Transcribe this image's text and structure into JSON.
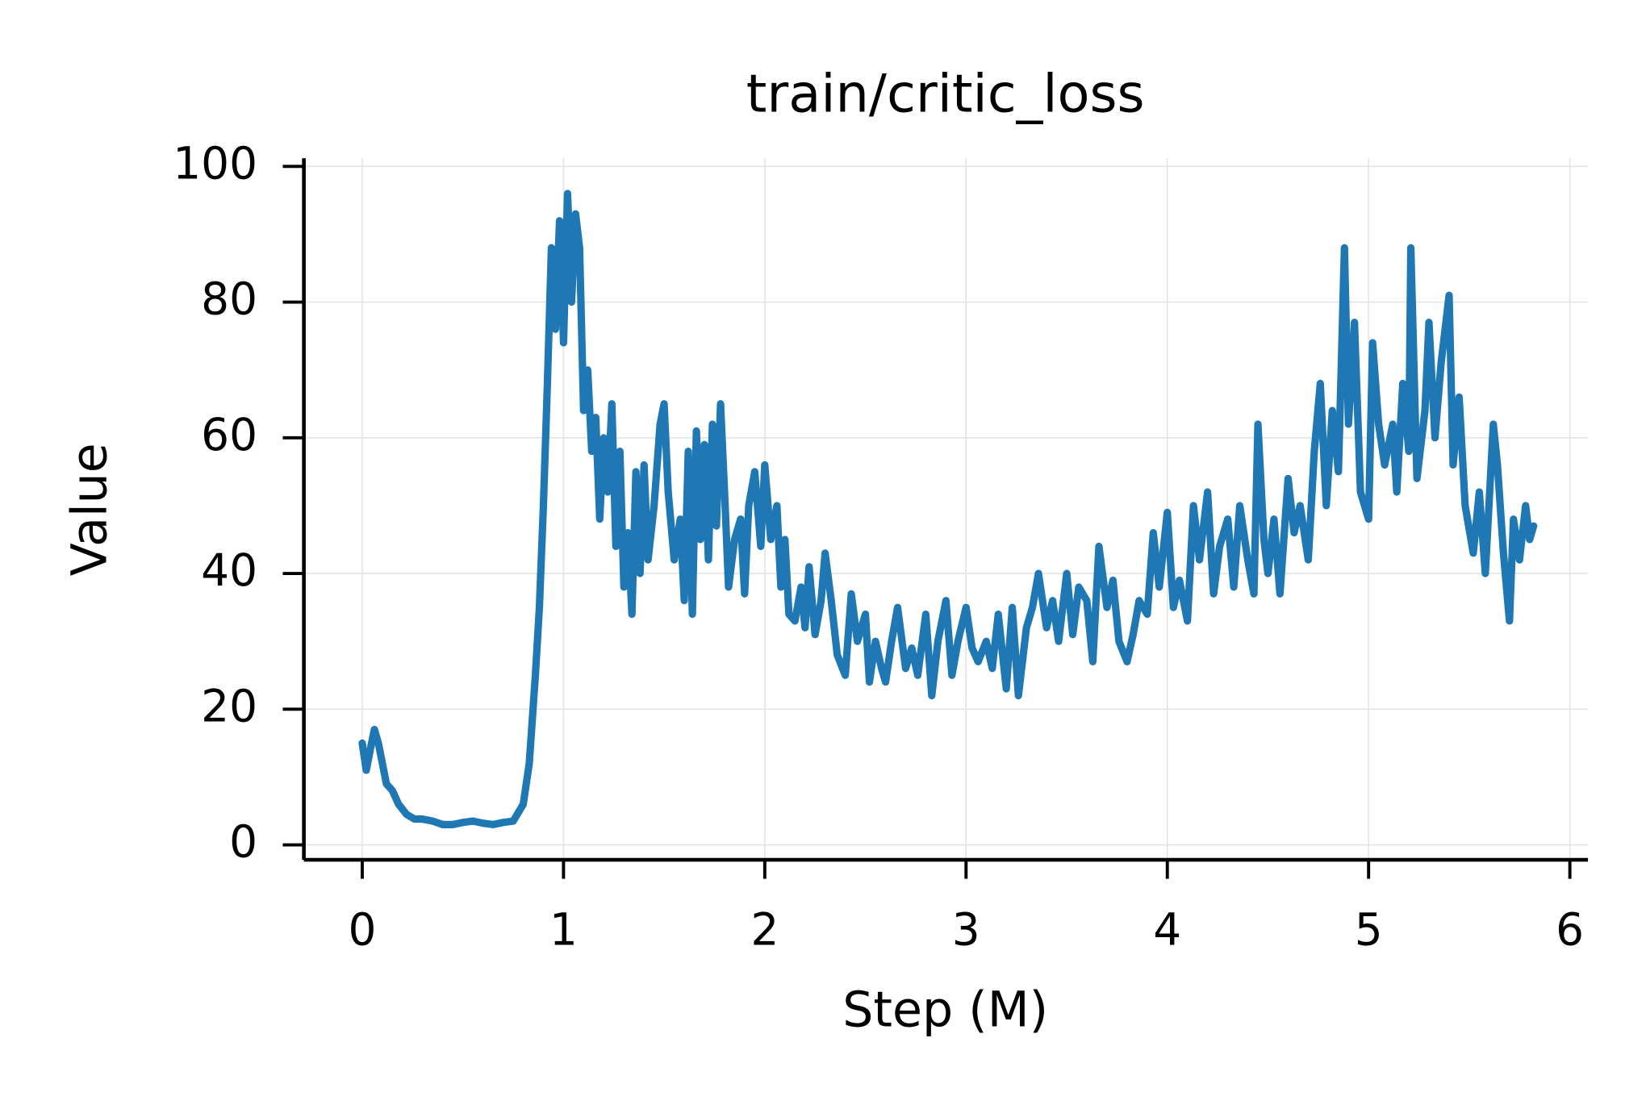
{
  "chart_data": {
    "type": "line",
    "title": "train/critic_loss",
    "x_label": "Step (M)",
    "y_label": "Value",
    "color": "#1f77b4",
    "grid": true,
    "xlim": [
      -0.29,
      6.09
    ],
    "ylim": [
      -2.2,
      101.2
    ],
    "xticks": [
      0,
      1,
      2,
      3,
      4,
      5,
      6
    ],
    "yticks": [
      0,
      20,
      40,
      60,
      80,
      100
    ],
    "x": [
      0,
      0.02,
      0.04,
      0.06,
      0.08,
      0.1,
      0.12,
      0.15,
      0.18,
      0.22,
      0.26,
      0.3,
      0.35,
      0.4,
      0.45,
      0.5,
      0.55,
      0.6,
      0.65,
      0.7,
      0.75,
      0.8,
      0.83,
      0.86,
      0.88,
      0.9,
      0.92,
      0.94,
      0.96,
      0.98,
      1.0,
      1.02,
      1.04,
      1.06,
      1.08,
      1.1,
      1.12,
      1.14,
      1.16,
      1.18,
      1.2,
      1.22,
      1.24,
      1.26,
      1.28,
      1.3,
      1.32,
      1.34,
      1.36,
      1.38,
      1.4,
      1.42,
      1.45,
      1.48,
      1.5,
      1.52,
      1.55,
      1.58,
      1.6,
      1.62,
      1.64,
      1.66,
      1.68,
      1.7,
      1.72,
      1.74,
      1.76,
      1.78,
      1.8,
      1.82,
      1.85,
      1.88,
      1.9,
      1.92,
      1.95,
      1.98,
      2.0,
      2.03,
      2.06,
      2.08,
      2.1,
      2.12,
      2.15,
      2.18,
      2.2,
      2.22,
      2.25,
      2.28,
      2.3,
      2.33,
      2.36,
      2.4,
      2.43,
      2.46,
      2.5,
      2.52,
      2.55,
      2.58,
      2.6,
      2.63,
      2.66,
      2.7,
      2.73,
      2.76,
      2.8,
      2.83,
      2.86,
      2.9,
      2.93,
      2.96,
      3.0,
      3.03,
      3.06,
      3.1,
      3.13,
      3.16,
      3.2,
      3.23,
      3.26,
      3.3,
      3.33,
      3.36,
      3.4,
      3.43,
      3.46,
      3.5,
      3.53,
      3.56,
      3.6,
      3.63,
      3.66,
      3.7,
      3.73,
      3.76,
      3.8,
      3.83,
      3.86,
      3.9,
      3.93,
      3.96,
      4.0,
      4.03,
      4.06,
      4.1,
      4.13,
      4.16,
      4.2,
      4.23,
      4.26,
      4.3,
      4.33,
      4.36,
      4.4,
      4.43,
      4.45,
      4.48,
      4.5,
      4.53,
      4.56,
      4.6,
      4.63,
      4.66,
      4.7,
      4.73,
      4.76,
      4.79,
      4.82,
      4.85,
      4.88,
      4.9,
      4.93,
      4.96,
      5.0,
      5.02,
      5.05,
      5.08,
      5.12,
      5.14,
      5.17,
      5.2,
      5.21,
      5.24,
      5.28,
      5.3,
      5.33,
      5.36,
      5.4,
      5.42,
      5.45,
      5.48,
      5.52,
      5.55,
      5.58,
      5.62,
      5.64,
      5.67,
      5.7,
      5.72,
      5.75,
      5.78,
      5.8,
      5.82
    ],
    "values": [
      15,
      11,
      14,
      17,
      15,
      12,
      9,
      8,
      6,
      4.5,
      3.8,
      3.8,
      3.5,
      3,
      3,
      3.3,
      3.5,
      3.2,
      3,
      3.3,
      3.5,
      6,
      12,
      25,
      35,
      50,
      68,
      88,
      76,
      92,
      74,
      96,
      80,
      93,
      88,
      64,
      70,
      58,
      63,
      48,
      60,
      52,
      65,
      44,
      58,
      38,
      46,
      34,
      55,
      40,
      56,
      42,
      50,
      62,
      65,
      52,
      42,
      48,
      36,
      58,
      34,
      61,
      45,
      59,
      42,
      62,
      47,
      65,
      52,
      38,
      45,
      48,
      37,
      50,
      55,
      44,
      56,
      45,
      50,
      38,
      45,
      34,
      33,
      38,
      32,
      41,
      31,
      36,
      43,
      36,
      28,
      25,
      37,
      30,
      34,
      24,
      30,
      26,
      24,
      30,
      35,
      26,
      29,
      25,
      34,
      22,
      30,
      36,
      25,
      30,
      35,
      29,
      27,
      30,
      26,
      34,
      23,
      35,
      22,
      32,
      35,
      40,
      32,
      36,
      30,
      40,
      31,
      38,
      36,
      27,
      44,
      35,
      39,
      30,
      27,
      31,
      36,
      34,
      46,
      38,
      49,
      35,
      39,
      33,
      50,
      42,
      52,
      37,
      44,
      48,
      38,
      50,
      42,
      37,
      62,
      45,
      40,
      48,
      37,
      54,
      46,
      50,
      42,
      58,
      68,
      50,
      64,
      55,
      88,
      62,
      77,
      52,
      48,
      74,
      62,
      56,
      62,
      52,
      68,
      58,
      88,
      54,
      64,
      77,
      60,
      71,
      81,
      56,
      66,
      50,
      43,
      52,
      40,
      62,
      56,
      43,
      33,
      48,
      42,
      50,
      45,
      47
    ]
  }
}
